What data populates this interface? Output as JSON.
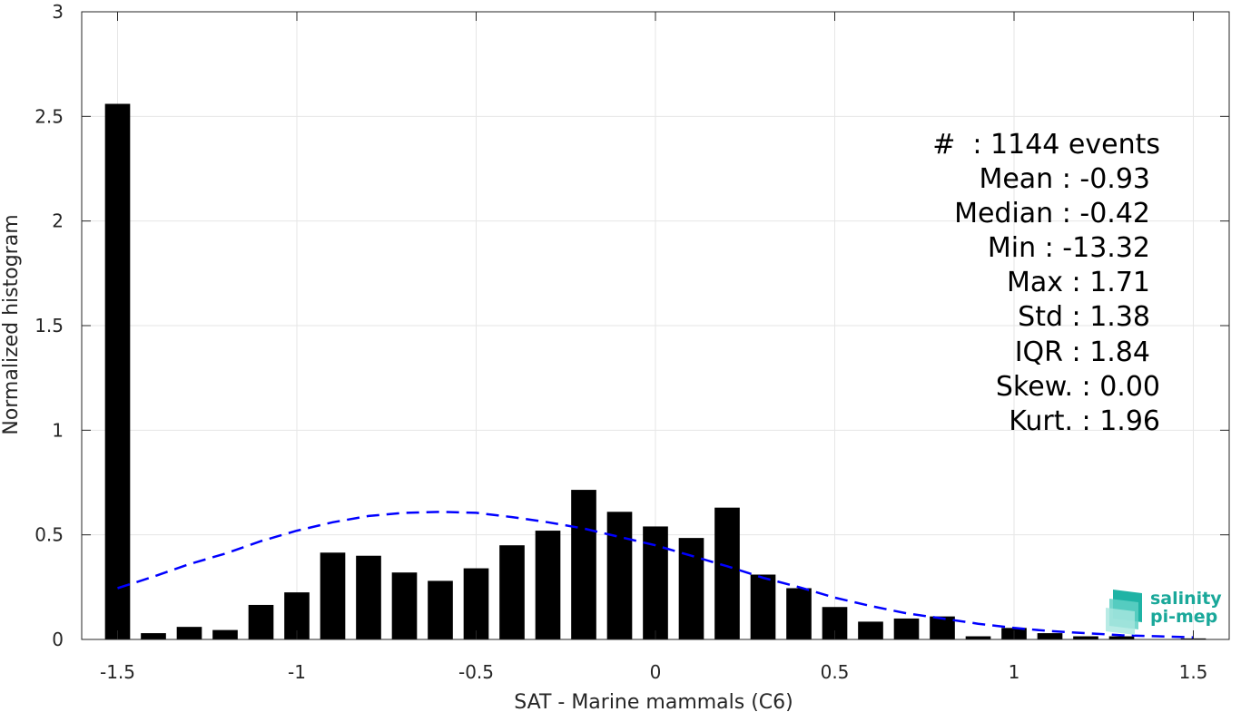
{
  "chart_data": {
    "type": "bar",
    "title": "",
    "xlabel": "SAT - Marine mammals (C6)",
    "ylabel": "Normalized histogram",
    "xlim": [
      -1.6,
      1.6
    ],
    "ylim": [
      0,
      3
    ],
    "grid": true,
    "x_ticks": [
      -1.5,
      -1,
      -0.5,
      0,
      0.5,
      1,
      1.5
    ],
    "x_tick_labels": [
      "-1.5",
      "-1",
      "-0.5",
      "0",
      "0.5",
      "1",
      "1.5"
    ],
    "y_ticks": [
      0,
      0.5,
      1,
      1.5,
      2,
      2.5,
      3
    ],
    "y_tick_labels": [
      "0",
      "0.5",
      "1",
      "1.5",
      "2",
      "2.5",
      "3"
    ],
    "bin_width": 0.1,
    "bar_width_fraction": 0.7,
    "colors": {
      "bars": "#000000",
      "fit_line": "#0000ff",
      "grid": "#e6e6e6"
    },
    "bins": [
      {
        "x": -1.5,
        "y": 2.56
      },
      {
        "x": -1.4,
        "y": 0.03
      },
      {
        "x": -1.3,
        "y": 0.06
      },
      {
        "x": -1.2,
        "y": 0.045
      },
      {
        "x": -1.1,
        "y": 0.165
      },
      {
        "x": -1.0,
        "y": 0.225
      },
      {
        "x": -0.9,
        "y": 0.415
      },
      {
        "x": -0.8,
        "y": 0.4
      },
      {
        "x": -0.7,
        "y": 0.32
      },
      {
        "x": -0.6,
        "y": 0.28
      },
      {
        "x": -0.5,
        "y": 0.34
      },
      {
        "x": -0.4,
        "y": 0.45
      },
      {
        "x": -0.3,
        "y": 0.52
      },
      {
        "x": -0.2,
        "y": 0.715
      },
      {
        "x": -0.1,
        "y": 0.61
      },
      {
        "x": 0.0,
        "y": 0.54
      },
      {
        "x": 0.1,
        "y": 0.485
      },
      {
        "x": 0.2,
        "y": 0.63
      },
      {
        "x": 0.3,
        "y": 0.31
      },
      {
        "x": 0.4,
        "y": 0.245
      },
      {
        "x": 0.5,
        "y": 0.155
      },
      {
        "x": 0.6,
        "y": 0.085
      },
      {
        "x": 0.7,
        "y": 0.1
      },
      {
        "x": 0.8,
        "y": 0.11
      },
      {
        "x": 0.9,
        "y": 0.015
      },
      {
        "x": 1.0,
        "y": 0.055
      },
      {
        "x": 1.1,
        "y": 0.03
      },
      {
        "x": 1.2,
        "y": 0.015
      },
      {
        "x": 1.3,
        "y": 0.015
      },
      {
        "x": 1.5,
        "y": 0.005
      }
    ],
    "fit_curve": {
      "style": "dashed",
      "points": [
        [
          -1.5,
          0.245
        ],
        [
          -1.4,
          0.3
        ],
        [
          -1.3,
          0.36
        ],
        [
          -1.2,
          0.41
        ],
        [
          -1.1,
          0.47
        ],
        [
          -1.0,
          0.52
        ],
        [
          -0.9,
          0.56
        ],
        [
          -0.8,
          0.59
        ],
        [
          -0.7,
          0.605
        ],
        [
          -0.6,
          0.61
        ],
        [
          -0.5,
          0.605
        ],
        [
          -0.4,
          0.585
        ],
        [
          -0.3,
          0.56
        ],
        [
          -0.2,
          0.53
        ],
        [
          -0.1,
          0.49
        ],
        [
          0.0,
          0.45
        ],
        [
          0.1,
          0.4
        ],
        [
          0.2,
          0.35
        ],
        [
          0.3,
          0.295
        ],
        [
          0.4,
          0.25
        ],
        [
          0.5,
          0.2
        ],
        [
          0.6,
          0.16
        ],
        [
          0.7,
          0.125
        ],
        [
          0.8,
          0.1
        ],
        [
          0.9,
          0.075
        ],
        [
          1.0,
          0.055
        ],
        [
          1.1,
          0.04
        ],
        [
          1.2,
          0.03
        ],
        [
          1.3,
          0.02
        ],
        [
          1.4,
          0.015
        ],
        [
          1.5,
          0.01
        ]
      ]
    },
    "annotations": [
      "#  : 1144 events",
      "Mean : -0.93",
      "Median : -0.42",
      "Min : -13.32",
      "Max : 1.71",
      "Std : 1.38",
      "IQR : 1.84",
      "Skew. : 0.00",
      "Kurt. : 1.96"
    ]
  },
  "logo": {
    "line1": "salinity",
    "line2": "pi-mep"
  }
}
